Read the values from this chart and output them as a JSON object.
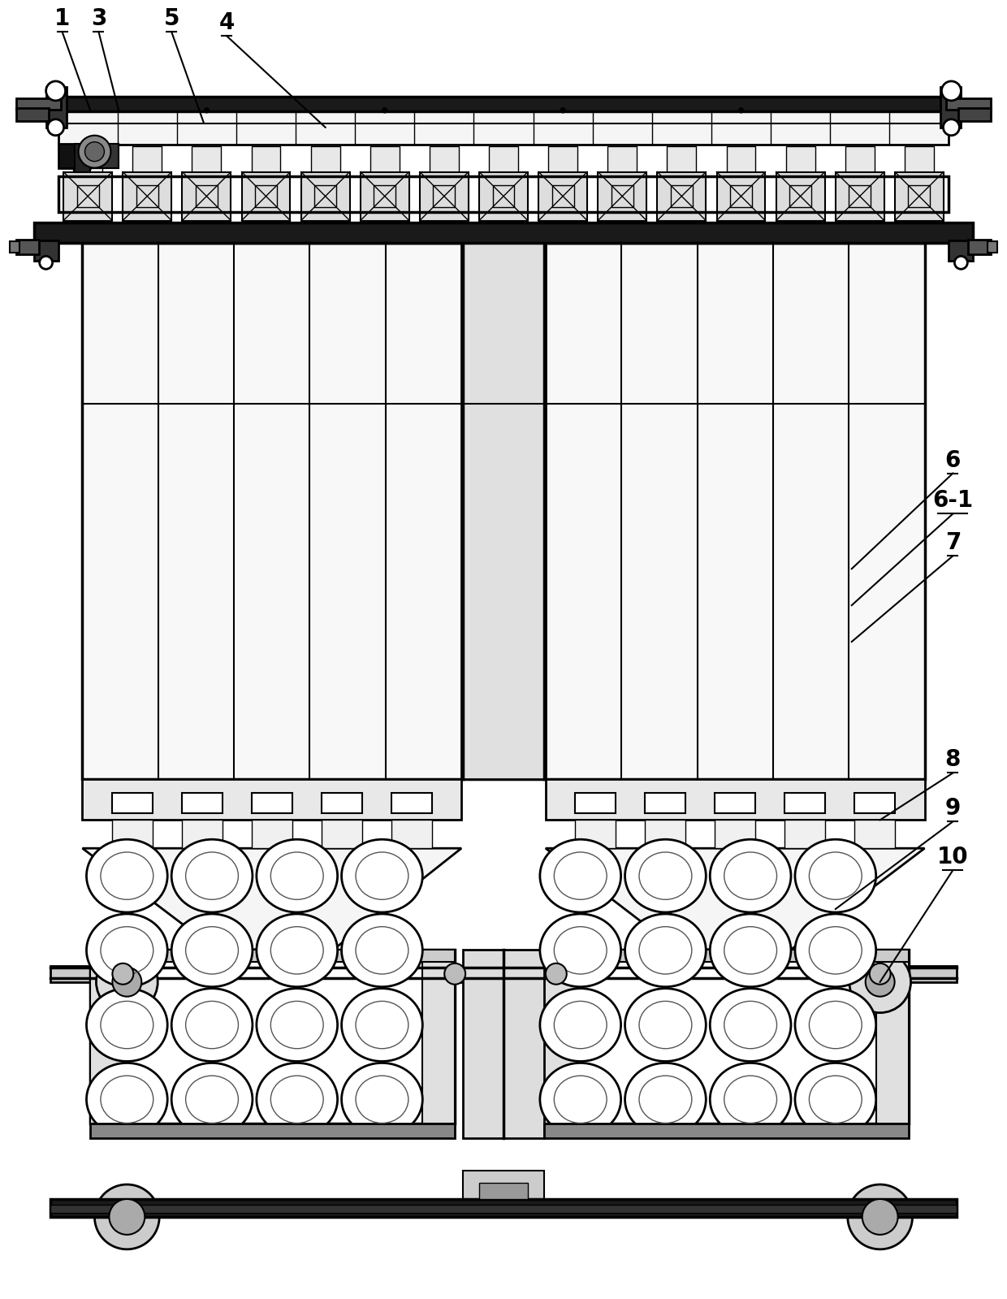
{
  "bg_color": "#ffffff",
  "lc": "#000000",
  "figsize": [
    12.4,
    15.99
  ],
  "dpi": 100
}
